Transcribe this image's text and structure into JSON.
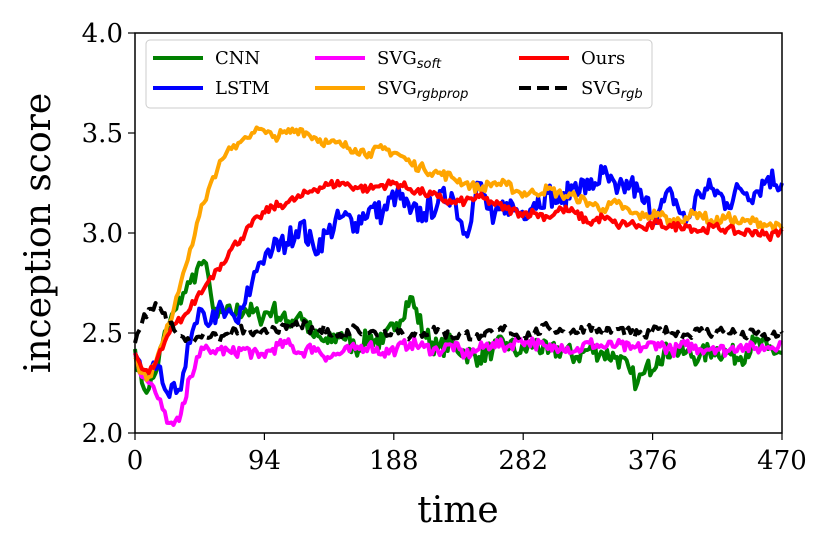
{
  "chart_data": {
    "type": "line",
    "title": "",
    "xlabel": "time",
    "ylabel": "inception score",
    "xlim": [
      0,
      470
    ],
    "ylim": [
      2.0,
      4.0
    ],
    "xticks": [
      0,
      94,
      188,
      282,
      376,
      470
    ],
    "xtick_labels": [
      "0",
      "94",
      "188",
      "282",
      "376",
      "470"
    ],
    "yticks": [
      2.0,
      2.5,
      3.0,
      3.5,
      4.0
    ],
    "ytick_labels": [
      "2.0",
      "2.5",
      "3.0",
      "3.5",
      "4.0"
    ],
    "legend_position": "top",
    "series": [
      {
        "name": "CNN",
        "name_main": "CNN",
        "name_sub": "",
        "color": "#008000",
        "dash": "solid",
        "x": [
          0,
          5,
          10,
          15,
          20,
          25,
          30,
          35,
          40,
          45,
          50,
          55,
          60,
          70,
          80,
          90,
          100,
          110,
          120,
          130,
          140,
          150,
          160,
          170,
          180,
          190,
          200,
          210,
          220,
          230,
          240,
          250,
          260,
          270,
          280,
          290,
          300,
          310,
          320,
          330,
          340,
          350,
          360,
          365,
          370,
          380,
          390,
          400,
          410,
          420,
          430,
          440,
          450,
          460,
          470
        ],
        "y": [
          2.42,
          2.25,
          2.22,
          2.3,
          2.45,
          2.55,
          2.62,
          2.7,
          2.75,
          2.82,
          2.86,
          2.7,
          2.58,
          2.6,
          2.62,
          2.58,
          2.62,
          2.55,
          2.6,
          2.48,
          2.45,
          2.5,
          2.42,
          2.48,
          2.45,
          2.55,
          2.68,
          2.5,
          2.42,
          2.45,
          2.4,
          2.38,
          2.42,
          2.45,
          2.4,
          2.45,
          2.4,
          2.42,
          2.38,
          2.42,
          2.4,
          2.38,
          2.3,
          2.25,
          2.3,
          2.38,
          2.42,
          2.4,
          2.38,
          2.42,
          2.4,
          2.38,
          2.45,
          2.42,
          2.4
        ]
      },
      {
        "name": "LSTM",
        "name_main": "LSTM",
        "name_sub": "",
        "color": "#0000ff",
        "dash": "solid",
        "x": [
          0,
          5,
          10,
          15,
          20,
          25,
          30,
          35,
          40,
          45,
          50,
          55,
          60,
          65,
          70,
          75,
          80,
          85,
          90,
          95,
          100,
          110,
          120,
          130,
          140,
          150,
          160,
          170,
          180,
          190,
          200,
          210,
          220,
          230,
          240,
          250,
          260,
          270,
          280,
          290,
          300,
          310,
          320,
          330,
          340,
          350,
          360,
          370,
          380,
          390,
          400,
          410,
          420,
          430,
          440,
          450,
          460,
          470
        ],
        "y": [
          2.4,
          2.3,
          2.28,
          2.32,
          2.25,
          2.18,
          2.2,
          2.3,
          2.45,
          2.55,
          2.6,
          2.55,
          2.62,
          2.58,
          2.6,
          2.55,
          2.65,
          2.75,
          2.85,
          2.9,
          2.92,
          2.95,
          3.05,
          2.92,
          3.0,
          3.08,
          3.05,
          3.12,
          3.1,
          3.2,
          3.1,
          3.1,
          3.15,
          3.2,
          3.0,
          3.25,
          3.05,
          3.15,
          3.1,
          3.15,
          3.2,
          3.15,
          3.25,
          3.22,
          3.3,
          3.2,
          3.25,
          3.15,
          3.1,
          3.2,
          3.05,
          3.2,
          3.22,
          3.15,
          3.22,
          3.2,
          3.28,
          3.25
        ]
      },
      {
        "name": "SVG_soft",
        "name_main": "SVG",
        "name_sub": "soft",
        "color": "#ff00ff",
        "dash": "solid",
        "x": [
          0,
          5,
          10,
          15,
          20,
          25,
          28,
          32,
          36,
          40,
          45,
          50,
          55,
          60,
          70,
          80,
          90,
          100,
          110,
          120,
          130,
          140,
          150,
          160,
          170,
          180,
          190,
          200,
          210,
          220,
          230,
          240,
          250,
          260,
          270,
          280,
          290,
          300,
          310,
          320,
          330,
          340,
          350,
          360,
          370,
          380,
          390,
          400,
          410,
          420,
          430,
          440,
          450,
          460,
          470
        ],
        "y": [
          2.4,
          2.28,
          2.25,
          2.2,
          2.12,
          2.05,
          2.04,
          2.06,
          2.15,
          2.28,
          2.38,
          2.42,
          2.4,
          2.42,
          2.4,
          2.42,
          2.38,
          2.42,
          2.45,
          2.4,
          2.43,
          2.38,
          2.4,
          2.42,
          2.44,
          2.4,
          2.42,
          2.45,
          2.43,
          2.41,
          2.44,
          2.39,
          2.42,
          2.45,
          2.43,
          2.47,
          2.45,
          2.42,
          2.44,
          2.41,
          2.45,
          2.43,
          2.44,
          2.42,
          2.43,
          2.45,
          2.41,
          2.44,
          2.42,
          2.43,
          2.41,
          2.44,
          2.42,
          2.43,
          2.45
        ]
      },
      {
        "name": "SVG_rgbprop",
        "name_main": "SVG",
        "name_sub": "rgbprop",
        "color": "#ffa500",
        "dash": "solid",
        "x": [
          0,
          5,
          10,
          15,
          20,
          25,
          30,
          35,
          40,
          45,
          50,
          55,
          60,
          65,
          70,
          75,
          80,
          85,
          90,
          95,
          100,
          110,
          120,
          130,
          140,
          150,
          160,
          170,
          180,
          190,
          200,
          210,
          220,
          230,
          240,
          250,
          260,
          270,
          280,
          290,
          300,
          310,
          320,
          330,
          340,
          350,
          360,
          370,
          380,
          390,
          400,
          410,
          420,
          430,
          440,
          450,
          460,
          470
        ],
        "y": [
          2.38,
          2.3,
          2.28,
          2.35,
          2.45,
          2.55,
          2.68,
          2.8,
          2.92,
          3.05,
          3.15,
          3.25,
          3.32,
          3.38,
          3.42,
          3.45,
          3.48,
          3.5,
          3.52,
          3.5,
          3.48,
          3.5,
          3.52,
          3.48,
          3.45,
          3.44,
          3.42,
          3.4,
          3.42,
          3.4,
          3.35,
          3.32,
          3.3,
          3.28,
          3.25,
          3.22,
          3.25,
          3.24,
          3.2,
          3.2,
          3.22,
          3.19,
          3.18,
          3.15,
          3.12,
          3.15,
          3.1,
          3.08,
          3.1,
          3.05,
          3.08,
          3.1,
          3.05,
          3.08,
          3.05,
          3.06,
          3.04,
          3.02
        ]
      },
      {
        "name": "Ours",
        "name_main": "Ours",
        "name_sub": "",
        "color": "#ff0000",
        "dash": "solid",
        "x": [
          0,
          5,
          10,
          15,
          20,
          25,
          30,
          35,
          40,
          45,
          50,
          55,
          60,
          70,
          80,
          90,
          100,
          110,
          120,
          130,
          140,
          150,
          160,
          170,
          180,
          190,
          200,
          210,
          220,
          230,
          240,
          250,
          260,
          270,
          280,
          290,
          300,
          310,
          320,
          330,
          340,
          350,
          360,
          370,
          380,
          390,
          400,
          410,
          420,
          430,
          440,
          450,
          460,
          470
        ],
        "y": [
          2.4,
          2.32,
          2.3,
          2.35,
          2.42,
          2.5,
          2.55,
          2.58,
          2.62,
          2.68,
          2.72,
          2.78,
          2.82,
          2.92,
          3.0,
          3.08,
          3.13,
          3.15,
          3.18,
          3.22,
          3.24,
          3.25,
          3.23,
          3.22,
          3.24,
          3.25,
          3.22,
          3.2,
          3.18,
          3.15,
          3.16,
          3.18,
          3.15,
          3.12,
          3.1,
          3.1,
          3.08,
          3.12,
          3.1,
          3.05,
          3.08,
          3.04,
          3.05,
          3.02,
          3.05,
          3.03,
          3.04,
          3.01,
          3.03,
          3.02,
          3.0,
          3.01,
          2.98,
          3.02
        ]
      },
      {
        "name": "SVG_rgb",
        "name_main": "SVG",
        "name_sub": "rgb",
        "color": "#000000",
        "dash": "dashed",
        "x": [
          0,
          5,
          10,
          15,
          20,
          25,
          30,
          35,
          40,
          45,
          50,
          55,
          60,
          70,
          80,
          90,
          100,
          110,
          120,
          130,
          140,
          150,
          160,
          170,
          180,
          190,
          200,
          210,
          220,
          230,
          240,
          250,
          260,
          270,
          280,
          290,
          300,
          310,
          320,
          330,
          340,
          350,
          360,
          370,
          380,
          390,
          400,
          410,
          420,
          430,
          440,
          450,
          460,
          470
        ],
        "y": [
          2.45,
          2.55,
          2.62,
          2.65,
          2.6,
          2.55,
          2.5,
          2.48,
          2.45,
          2.48,
          2.5,
          2.48,
          2.47,
          2.5,
          2.52,
          2.48,
          2.53,
          2.52,
          2.55,
          2.5,
          2.52,
          2.48,
          2.53,
          2.5,
          2.5,
          2.52,
          2.48,
          2.5,
          2.52,
          2.48,
          2.5,
          2.47,
          2.5,
          2.52,
          2.48,
          2.5,
          2.53,
          2.51,
          2.5,
          2.54,
          2.5,
          2.52,
          2.5,
          2.48,
          2.52,
          2.5,
          2.49,
          2.51,
          2.5,
          2.52,
          2.48,
          2.5,
          2.47,
          2.5
        ]
      }
    ]
  }
}
